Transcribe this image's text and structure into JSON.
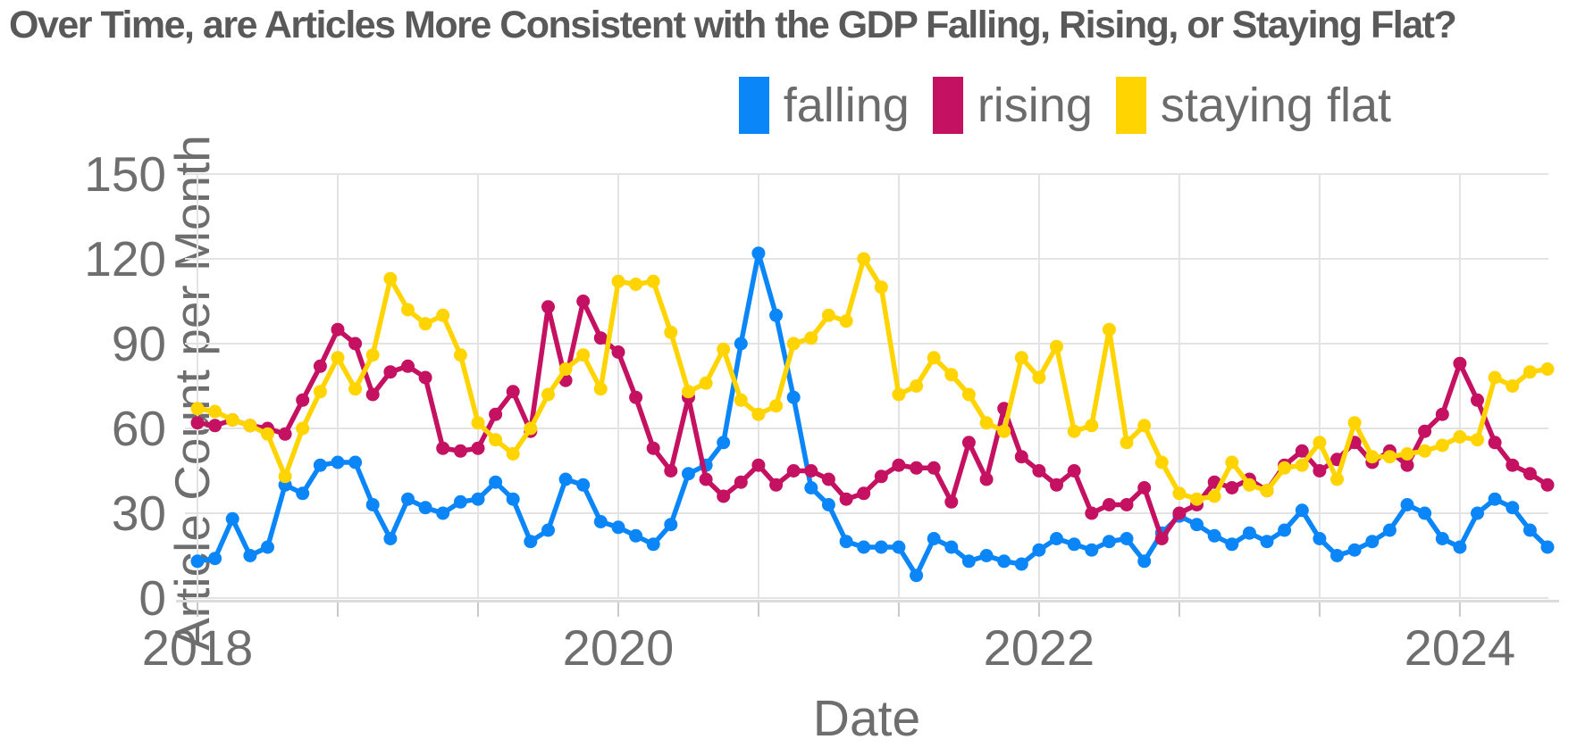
{
  "chart_data": {
    "type": "line",
    "title": "Over Time, are Articles More Consistent with the GDP Falling, Rising, or Staying Flat?",
    "xlabel": "Date",
    "ylabel": "Article Count per Month",
    "legend_position": "top-right",
    "grid": true,
    "ylim": [
      0,
      150
    ],
    "yticks": [
      0,
      30,
      60,
      90,
      120,
      150
    ],
    "xticks": [
      {
        "i": 0,
        "label": "2018"
      },
      {
        "i": 8,
        "label": ""
      },
      {
        "i": 16,
        "label": ""
      },
      {
        "i": 24,
        "label": "2020"
      },
      {
        "i": 32,
        "label": ""
      },
      {
        "i": 40,
        "label": ""
      },
      {
        "i": 48,
        "label": "2022"
      },
      {
        "i": 56,
        "label": ""
      },
      {
        "i": 64,
        "label": ""
      },
      {
        "i": 72,
        "label": "2024"
      }
    ],
    "x": [
      "2018-01",
      "2018-02",
      "2018-03",
      "2018-04",
      "2018-05",
      "2018-06",
      "2018-07",
      "2018-08",
      "2018-09",
      "2018-10",
      "2018-11",
      "2018-12",
      "2019-01",
      "2019-02",
      "2019-03",
      "2019-04",
      "2019-05",
      "2019-06",
      "2019-07",
      "2019-08",
      "2019-09",
      "2019-10",
      "2019-11",
      "2019-12",
      "2020-01",
      "2020-02",
      "2020-03",
      "2020-04",
      "2020-05",
      "2020-06",
      "2020-07",
      "2020-08",
      "2020-09",
      "2020-10",
      "2020-11",
      "2020-12",
      "2021-01",
      "2021-02",
      "2021-03",
      "2021-04",
      "2021-05",
      "2021-06",
      "2021-07",
      "2021-08",
      "2021-09",
      "2021-10",
      "2021-11",
      "2021-12",
      "2022-01",
      "2022-02",
      "2022-03",
      "2022-04",
      "2022-05",
      "2022-06",
      "2022-07",
      "2022-08",
      "2022-09",
      "2022-10",
      "2022-11",
      "2022-12",
      "2023-01",
      "2023-02",
      "2023-03",
      "2023-04",
      "2023-05",
      "2023-06",
      "2023-07",
      "2023-08",
      "2023-09",
      "2023-10",
      "2023-11",
      "2023-12",
      "2024-01",
      "2024-02",
      "2024-03",
      "2024-04",
      "2024-05",
      "2024-06"
    ],
    "series": [
      {
        "name": "falling",
        "color": "#0b86f8",
        "values": [
          13,
          14,
          28,
          15,
          18,
          40,
          37,
          47,
          48,
          48,
          33,
          21,
          35,
          32,
          30,
          34,
          35,
          41,
          35,
          20,
          24,
          42,
          40,
          27,
          25,
          22,
          19,
          26,
          44,
          47,
          55,
          90,
          122,
          100,
          71,
          39,
          33,
          20,
          18,
          18,
          18,
          8,
          21,
          18,
          13,
          15,
          13,
          12,
          17,
          21,
          19,
          17,
          20,
          21,
          13,
          23,
          29,
          26,
          22,
          19,
          23,
          20,
          24,
          31,
          21,
          15,
          17,
          20,
          24,
          33,
          30,
          21,
          18,
          30,
          35,
          32,
          24,
          18
        ]
      },
      {
        "name": "rising",
        "color": "#c41161",
        "values": [
          62,
          61,
          63,
          61,
          60,
          58,
          70,
          82,
          95,
          90,
          72,
          80,
          82,
          78,
          53,
          52,
          53,
          65,
          73,
          59,
          103,
          77,
          105,
          92,
          87,
          71,
          53,
          45,
          71,
          42,
          36,
          41,
          47,
          40,
          45,
          45,
          42,
          35,
          37,
          43,
          47,
          46,
          46,
          34,
          55,
          42,
          67,
          50,
          45,
          40,
          45,
          30,
          33,
          33,
          39,
          21,
          30,
          33,
          41,
          39,
          42,
          38,
          47,
          52,
          45,
          49,
          55,
          48,
          52,
          47,
          59,
          65,
          83,
          70,
          55,
          47,
          44,
          40
        ]
      },
      {
        "name": "staying flat",
        "color": "#ffd400",
        "values": [
          67,
          66,
          63,
          61,
          58,
          43,
          60,
          73,
          85,
          74,
          86,
          113,
          102,
          97,
          100,
          86,
          62,
          56,
          51,
          60,
          72,
          81,
          86,
          74,
          112,
          111,
          112,
          94,
          73,
          76,
          88,
          70,
          65,
          68,
          90,
          92,
          100,
          98,
          120,
          110,
          72,
          75,
          85,
          79,
          72,
          62,
          59,
          85,
          78,
          89,
          59,
          61,
          95,
          55,
          61,
          48,
          37,
          35,
          36,
          48,
          40,
          38,
          46,
          47,
          55,
          42,
          62,
          50,
          50,
          51,
          52,
          54,
          57,
          56,
          78,
          75,
          80,
          81
        ]
      }
    ],
    "colors": {
      "title_text": "#595959",
      "axis_text": "#6e6e6e",
      "legend_text": "#6b6b6b",
      "gridline": "#e3e3e3",
      "axis_line": "#dcdcdc",
      "tick_mark": "#c9c9c9",
      "background": "#ffffff"
    }
  }
}
